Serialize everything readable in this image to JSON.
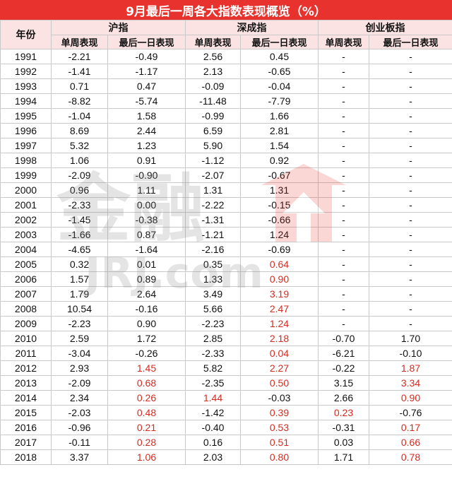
{
  "title": "9月最后一周各大指数表现概览（%）",
  "headers": {
    "year": "年份",
    "groups": [
      "沪指",
      "深成指",
      "创业板指"
    ],
    "sub": [
      "单周表现",
      "最后一日表现",
      "单周表现",
      "最后一日表现",
      "单周表现",
      "最后一日表现"
    ]
  },
  "colors": {
    "title_bg": "#e8322d",
    "header_bg": "#fbe3e3",
    "highlight": "#d42a1f"
  },
  "rows": [
    [
      "1991",
      "-2.21",
      "-0.49",
      "2.56",
      "0.45",
      "-",
      "-"
    ],
    [
      "1992",
      "-1.41",
      "-1.17",
      "2.13",
      "-0.65",
      "-",
      "-"
    ],
    [
      "1993",
      "0.71",
      "0.47",
      "-0.09",
      "-0.04",
      "-",
      "-"
    ],
    [
      "1994",
      "-8.82",
      "-5.74",
      "-11.48",
      "-7.79",
      "-",
      "-"
    ],
    [
      "1995",
      "-1.04",
      "1.58",
      "-0.99",
      "1.66",
      "-",
      "-"
    ],
    [
      "1996",
      "8.69",
      "2.44",
      "6.59",
      "2.81",
      "-",
      "-"
    ],
    [
      "1997",
      "5.32",
      "1.23",
      "5.90",
      "1.54",
      "-",
      "-"
    ],
    [
      "1998",
      "1.06",
      "0.91",
      "-1.12",
      "0.92",
      "-",
      "-"
    ],
    [
      "1999",
      "-2.09",
      "-0.90",
      "-2.07",
      "-0.67",
      "-",
      "-"
    ],
    [
      "2000",
      "0.96",
      "1.11",
      "1.31",
      "1.31",
      "-",
      "-"
    ],
    [
      "2001",
      "-2.33",
      "0.00",
      "-2.22",
      "-0.15",
      "-",
      "-"
    ],
    [
      "2002",
      "-1.45",
      "-0.38",
      "-1.31",
      "-0.66",
      "-",
      "-"
    ],
    [
      "2003",
      "-1.66",
      "0.87",
      "-1.21",
      "1.24",
      "-",
      "-"
    ],
    [
      "2004",
      "-4.65",
      "-1.64",
      "-2.16",
      "-0.69",
      "-",
      "-"
    ],
    [
      "2005",
      "0.32",
      "0.01",
      "0.35",
      "0.64",
      "-",
      "-"
    ],
    [
      "2006",
      "1.57",
      "0.89",
      "1.33",
      "0.90",
      "-",
      "-"
    ],
    [
      "2007",
      "1.79",
      "2.64",
      "3.49",
      "3.19",
      "-",
      "-"
    ],
    [
      "2008",
      "10.54",
      "-0.16",
      "5.66",
      "2.47",
      "-",
      "-"
    ],
    [
      "2009",
      "-2.23",
      "0.90",
      "-2.23",
      "1.24",
      "-",
      "-"
    ],
    [
      "2010",
      "2.59",
      "1.72",
      "2.85",
      "2.18",
      "-0.70",
      "1.70"
    ],
    [
      "2011",
      "-3.04",
      "-0.26",
      "-2.33",
      "0.04",
      "-6.21",
      "-0.10"
    ],
    [
      "2012",
      "2.93",
      "1.45",
      "5.82",
      "2.27",
      "-0.22",
      "1.87"
    ],
    [
      "2013",
      "-2.09",
      "0.68",
      "-2.35",
      "0.50",
      "3.15",
      "3.34"
    ],
    [
      "2014",
      "2.34",
      "0.26",
      "1.44",
      "-0.03",
      "2.66",
      "0.90"
    ],
    [
      "2015",
      "-2.03",
      "0.48",
      "-1.42",
      "0.39",
      "0.23",
      "-0.76"
    ],
    [
      "2016",
      "-0.96",
      "0.21",
      "-0.40",
      "0.53",
      "-0.31",
      "0.17"
    ],
    [
      "2017",
      "-0.11",
      "0.28",
      "0.16",
      "0.51",
      "0.03",
      "0.66"
    ],
    [
      "2018",
      "3.37",
      "1.06",
      "2.03",
      "0.80",
      "1.71",
      "0.78"
    ]
  ],
  "red_cells": [
    [
      14,
      4
    ],
    [
      15,
      4
    ],
    [
      16,
      4
    ],
    [
      17,
      4
    ],
    [
      18,
      4
    ],
    [
      19,
      4
    ],
    [
      20,
      4
    ],
    [
      21,
      2
    ],
    [
      21,
      4
    ],
    [
      21,
      6
    ],
    [
      22,
      2
    ],
    [
      22,
      4
    ],
    [
      22,
      6
    ],
    [
      23,
      2
    ],
    [
      23,
      3
    ],
    [
      23,
      6
    ],
    [
      24,
      2
    ],
    [
      24,
      4
    ],
    [
      24,
      5
    ],
    [
      25,
      2
    ],
    [
      25,
      4
    ],
    [
      25,
      6
    ],
    [
      26,
      2
    ],
    [
      26,
      4
    ],
    [
      26,
      6
    ],
    [
      27,
      2
    ],
    [
      27,
      4
    ],
    [
      27,
      6
    ]
  ],
  "watermark": {
    "brand": "金融界",
    "site": "JRJ.com"
  }
}
